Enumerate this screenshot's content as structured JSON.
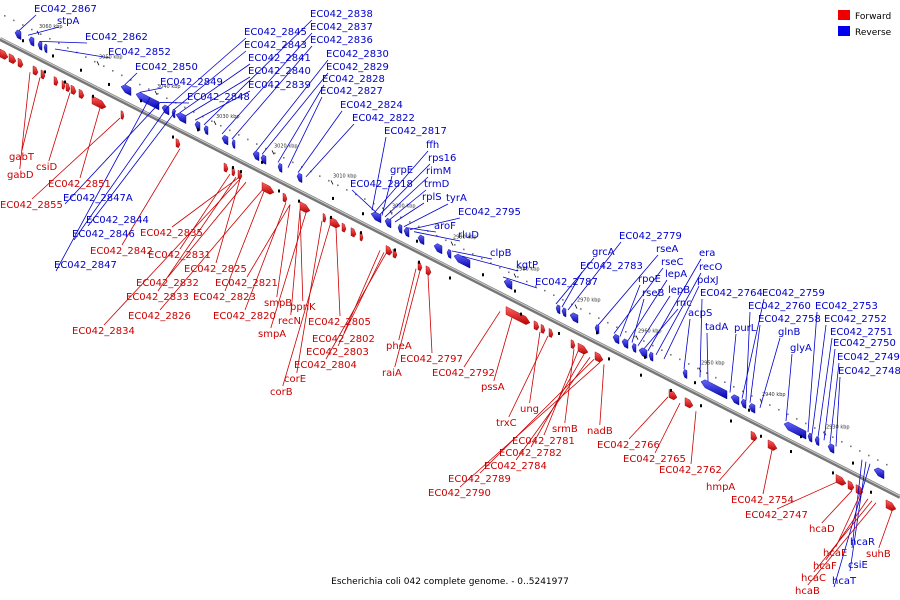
{
  "caption": "Escherichia coli 042 complete genome. - 0..5241977",
  "legend": [
    {
      "label": "Forward",
      "color": "#ee0000"
    },
    {
      "label": "Reverse",
      "color": "#0000ee"
    }
  ],
  "ticks": [
    "3060 kbp",
    "3050 kbp",
    "3040 kbp",
    "3030 kbp",
    "3020 kbp",
    "3010 kbp",
    "3000 kbp",
    "2990 kbp",
    "2980 kbp",
    "2970 kbp",
    "2960 kbp",
    "2950 kbp",
    "2940 kbp",
    "2930 kbp"
  ],
  "reverse_labels": [
    "EC042_2867",
    "stpA",
    "EC042_2862",
    "EC042_2852",
    "EC042_2850",
    "EC042_2849",
    "EC042_2848",
    "EC042_2845",
    "EC042_2843",
    "EC042_2841",
    "EC042_2840",
    "EC042_2839",
    "EC042_2838",
    "EC042_2837",
    "EC042_2836",
    "EC042_2830",
    "EC042_2829",
    "EC042_2828",
    "EC042_2827",
    "EC042_2824",
    "EC042_2822",
    "EC042_2817",
    "ffh",
    "rps16",
    "rimM",
    "trmD",
    "rplS",
    "grpE",
    "EC042_2818",
    "tyrA",
    "EC042_2795",
    "aroF",
    "rluD",
    "clpB",
    "kgtP",
    "EC042_2787",
    "grcA",
    "EC042_2783",
    "EC042_2779",
    "rseA",
    "rseC",
    "rpoE",
    "lepA",
    "rseB",
    "lepB",
    "rnc",
    "era",
    "recO",
    "pdxJ",
    "acpS",
    "EC042_2764",
    "tadA",
    "purL",
    "EC042_2759",
    "EC042_2760",
    "EC042_2758",
    "glnB",
    "glyA",
    "EC042_2753",
    "EC042_2752",
    "EC042_2751",
    "EC042_2750",
    "EC042_2749",
    "EC042_2748",
    "EC042_2847A",
    "EC042_2844",
    "EC042_2846",
    "EC042_2847",
    "hcaR",
    "csiE",
    "hcaT"
  ],
  "forward_labels": [
    "gabT",
    "csiD",
    "gabD",
    "EC042_2851",
    "EC042_2855",
    "EC042_2842",
    "EC042_2835",
    "EC042_2831",
    "EC042_2825",
    "EC042_2832",
    "EC042_2833",
    "EC042_2821",
    "EC042_2823",
    "EC042_2826",
    "EC042_2834",
    "smpB",
    "ppnK",
    "EC042_2820",
    "recN",
    "smpA",
    "EC042_2805",
    "EC042_2802",
    "EC042_2803",
    "EC042_2804",
    "corE",
    "corB",
    "pheA",
    "EC042_2797",
    "raiA",
    "EC042_2792",
    "pssA",
    "ung",
    "trxC",
    "srmB",
    "EC042_2781",
    "EC042_2782",
    "EC042_2784",
    "EC042_2789",
    "EC042_2790",
    "nadB",
    "EC042_2766",
    "EC042_2765",
    "EC042_2762",
    "hmpA",
    "EC042_2754",
    "EC042_2747",
    "hcaD",
    "hcaE",
    "hcaF",
    "hcaC",
    "hcaB",
    "suhB"
  ]
}
